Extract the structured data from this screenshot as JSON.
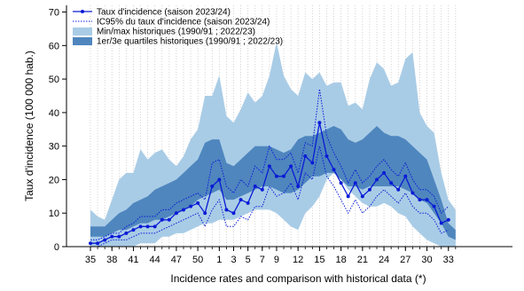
{
  "chart_data": {
    "type": "line",
    "xlabel": "Incidence rates and comparison with historical data (*)",
    "ylabel": "Taux d'incidence (100 000 hab.)",
    "ylim": [
      0,
      72
    ],
    "yticks": [
      0,
      10,
      20,
      30,
      40,
      50,
      60,
      70
    ],
    "xtick_labels": [
      "35",
      "38",
      "41",
      "44",
      "47",
      "50",
      "1",
      "3",
      "5",
      "7",
      "9",
      "12",
      "15",
      "18",
      "21",
      "24",
      "27",
      "30",
      "33"
    ],
    "weeks": [
      "35",
      "36",
      "37",
      "38",
      "39",
      "40",
      "41",
      "42",
      "43",
      "44",
      "45",
      "46",
      "47",
      "48",
      "49",
      "50",
      "51",
      "52",
      "1",
      "2",
      "3",
      "4",
      "5",
      "6",
      "7",
      "8",
      "9",
      "10",
      "11",
      "12",
      "13",
      "14",
      "15",
      "16",
      "17",
      "18",
      "19",
      "20",
      "21",
      "22",
      "23",
      "24",
      "25",
      "26",
      "27",
      "28",
      "29",
      "30",
      "31",
      "32",
      "33",
      "34"
    ],
    "grid": "vertical dotted",
    "legend_position": "top-left",
    "colors": {
      "minmax": "#a9cce6",
      "quartile": "#4f86be",
      "rate": "#0a1bd6",
      "ci": "#0a1bd6"
    },
    "legend": [
      {
        "label": "Taux d'incidence (saison 2023/24)",
        "kind": "line-marker"
      },
      {
        "label": "IC95% du taux d'incidence (saison 2023/24)",
        "kind": "dotted"
      },
      {
        "label": "Min/max historiques (1990/91 ; 2022/23)",
        "kind": "band-light"
      },
      {
        "label": "1er/3e quartiles historiques (1990/91 ; 2022/23)",
        "kind": "band-dark"
      }
    ],
    "series": [
      {
        "name": "Taux d'incidence (saison 2023/24)",
        "values": [
          1,
          1,
          2,
          3,
          3,
          4,
          5,
          6,
          6,
          6,
          8,
          8,
          10,
          11,
          12,
          13,
          10,
          18,
          20,
          11,
          10,
          14,
          13,
          18,
          17,
          24,
          21,
          21,
          24,
          18,
          27,
          25,
          37,
          27,
          23,
          19,
          15,
          19,
          15,
          17,
          20,
          22,
          19,
          17,
          21,
          16,
          14,
          14,
          12,
          7,
          8
        ]
      },
      {
        "name": "IC95% du taux d'incidence (saison 2023/24) - haut",
        "values": [
          2,
          2,
          3,
          4,
          4,
          6,
          7,
          9,
          9,
          9,
          11,
          11,
          13,
          14,
          15,
          16,
          14,
          25,
          26,
          18,
          16,
          20,
          18,
          24,
          22,
          30,
          26,
          26,
          28,
          22,
          31,
          30,
          47,
          33,
          28,
          24,
          19,
          23,
          19,
          21,
          24,
          26,
          23,
          21,
          25,
          20,
          17,
          17,
          15,
          10,
          12
        ]
      },
      {
        "name": "IC95% du taux d'incidence (saison 2023/24) - bas",
        "values": [
          0,
          0,
          1,
          2,
          2,
          2,
          3,
          4,
          4,
          4,
          5,
          6,
          7,
          8,
          9,
          10,
          6,
          11,
          14,
          6,
          6,
          9,
          8,
          12,
          12,
          18,
          15,
          16,
          19,
          14,
          22,
          20,
          30,
          21,
          18,
          14,
          10,
          14,
          10,
          12,
          15,
          17,
          15,
          13,
          16,
          12,
          10,
          10,
          8,
          4,
          5
        ]
      }
    ],
    "bands": {
      "minmax": {
        "upper": [
          11,
          9,
          8,
          14,
          20,
          22,
          22,
          29,
          26,
          28,
          29,
          26,
          24,
          27,
          32,
          35,
          45,
          45,
          51,
          39,
          37,
          41,
          46,
          43,
          45,
          51,
          61,
          51,
          47,
          45,
          52,
          50,
          52,
          48,
          49,
          49,
          42,
          43,
          41,
          50,
          55,
          53,
          48,
          49,
          56,
          58,
          40,
          36,
          34,
          22,
          14,
          11
        ],
        "lower": [
          0,
          0,
          0,
          0,
          0,
          0,
          0,
          1,
          1,
          1,
          3,
          3,
          4,
          4,
          5,
          6,
          7,
          7,
          8,
          8,
          8,
          9,
          10,
          11,
          11,
          11,
          10,
          8,
          6,
          5,
          10,
          12,
          15,
          20,
          22,
          20,
          17,
          15,
          13,
          12,
          12,
          13,
          12,
          10,
          9,
          6,
          4,
          2,
          1,
          0,
          0,
          0
        ]
      },
      "quartile": {
        "upper": [
          6,
          6,
          6,
          8,
          10,
          11,
          13,
          14,
          15,
          17,
          18,
          19,
          20,
          22,
          24,
          26,
          31,
          32,
          32,
          25,
          24,
          26,
          28,
          30,
          30,
          30,
          29,
          28,
          29,
          32,
          33,
          33,
          34,
          35,
          36,
          35,
          32,
          31,
          32,
          34,
          36,
          34,
          33,
          33,
          32,
          30,
          28,
          26,
          20,
          14,
          7,
          5
        ],
        "lower": [
          3,
          3,
          3,
          4,
          5,
          5,
          6,
          7,
          7,
          8,
          8,
          9,
          10,
          11,
          12,
          14,
          15,
          16,
          17,
          14,
          14,
          15,
          16,
          17,
          18,
          18,
          17,
          16,
          16,
          17,
          19,
          21,
          21,
          22,
          22,
          20,
          18,
          18,
          17,
          18,
          18,
          18,
          18,
          18,
          17,
          16,
          14,
          13,
          10,
          7,
          3,
          2
        ]
      }
    }
  }
}
